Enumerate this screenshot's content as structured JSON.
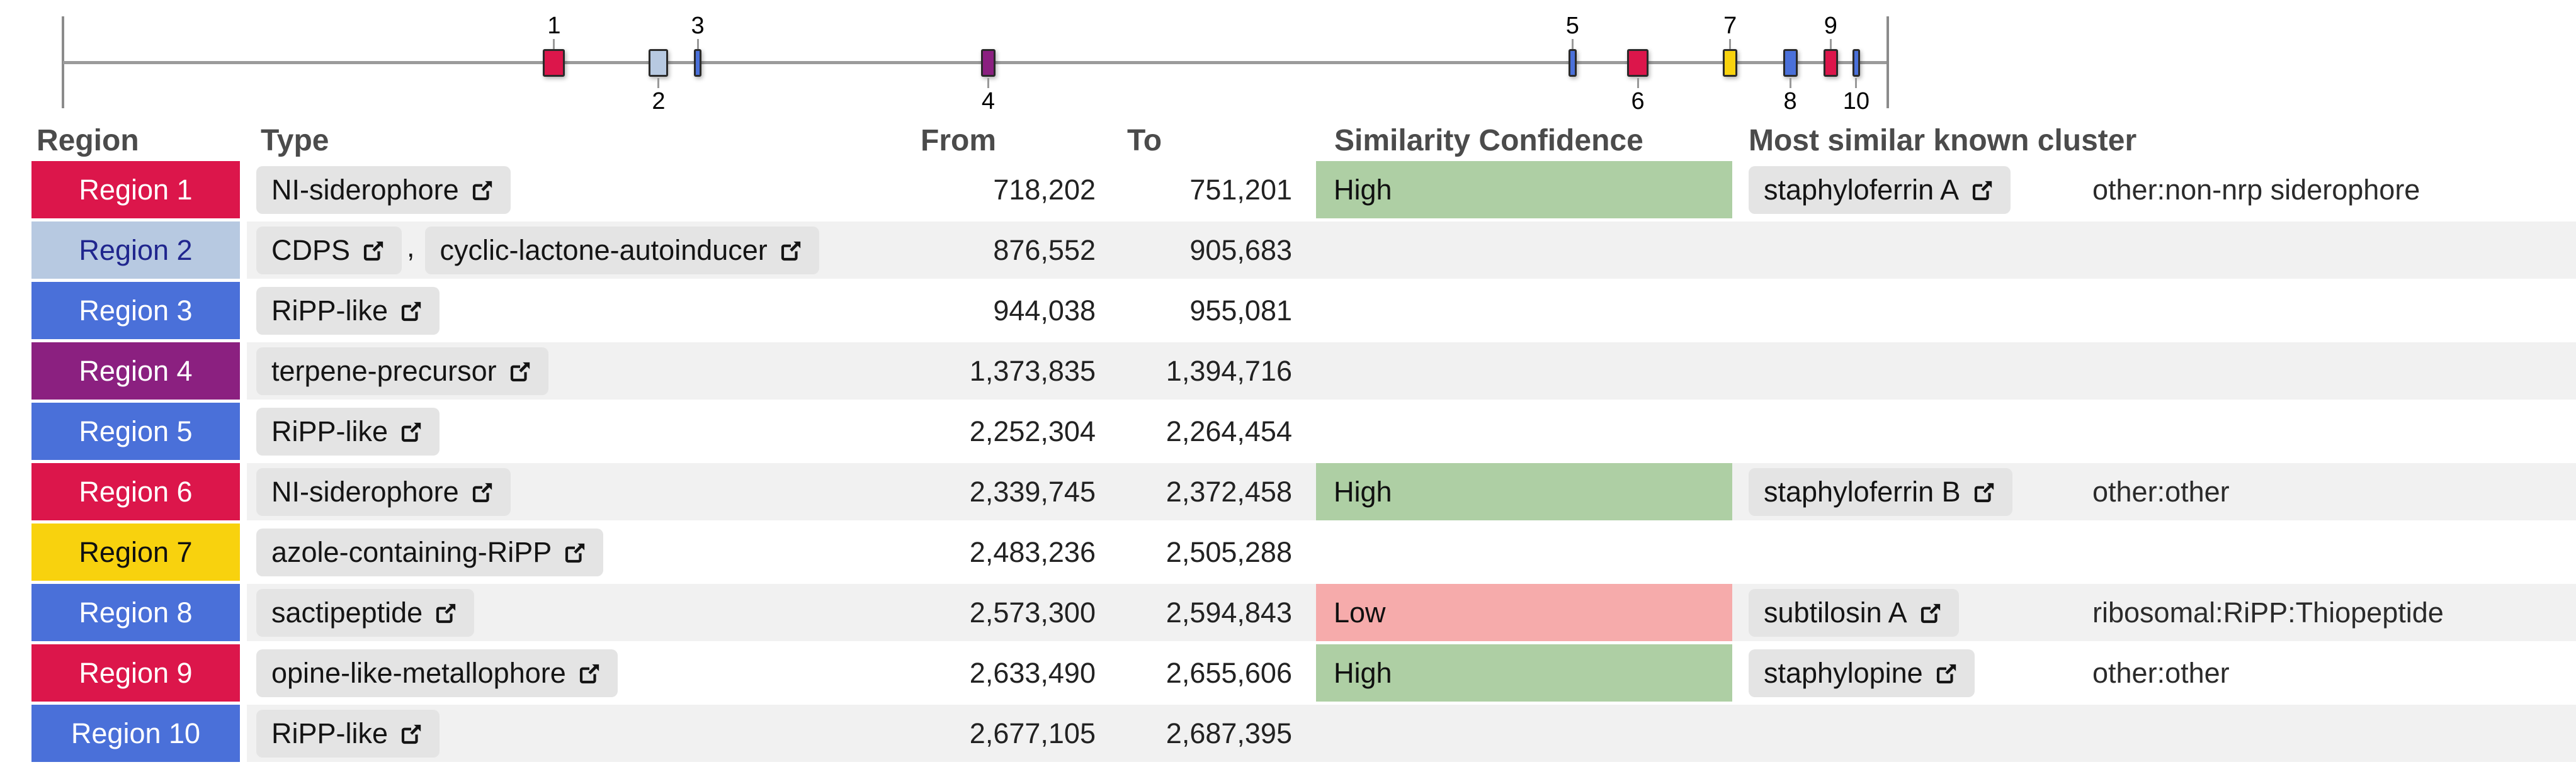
{
  "ruler": {
    "genome_length_bp": 2730000,
    "marker_numbers_above": [
      1,
      3,
      5,
      7,
      9
    ],
    "marker_numbers_below": [
      2,
      4,
      6,
      8,
      10
    ]
  },
  "table": {
    "headers": {
      "region": "Region",
      "type": "Type",
      "from": "From",
      "to": "To",
      "similarity": "Similarity Confidence",
      "cluster": "Most similar known cluster"
    },
    "regions": [
      {
        "number": "1",
        "label": "Region 1",
        "badge_color": "#dc164b",
        "badge_text_color": "#ffffff",
        "types": [
          "NI-siderophore"
        ],
        "from": "718,202",
        "to": "751,201",
        "from_bp": 718202,
        "to_bp": 751201,
        "similarity": "High",
        "similarity_color": "#aecfa4",
        "cluster": "staphyloferrin A",
        "cluster_type": "other:non-nrp siderophore"
      },
      {
        "number": "2",
        "label": "Region 2",
        "badge_color": "#b7c9e1",
        "badge_text_color": "#20268e",
        "types": [
          "CDPS",
          "cyclic-lactone-autoinducer"
        ],
        "from": "876,552",
        "to": "905,683",
        "from_bp": 876552,
        "to_bp": 905683,
        "similarity": "",
        "similarity_color": "",
        "cluster": "",
        "cluster_type": ""
      },
      {
        "number": "3",
        "label": "Region 3",
        "badge_color": "#4a70d9",
        "badge_text_color": "#ffffff",
        "types": [
          "RiPP-like"
        ],
        "from": "944,038",
        "to": "955,081",
        "from_bp": 944038,
        "to_bp": 955081,
        "similarity": "",
        "similarity_color": "",
        "cluster": "",
        "cluster_type": ""
      },
      {
        "number": "4",
        "label": "Region 4",
        "badge_color": "#8b2080",
        "badge_text_color": "#ffffff",
        "types": [
          "terpene-precursor"
        ],
        "from": "1,373,835",
        "to": "1,394,716",
        "from_bp": 1373835,
        "to_bp": 1394716,
        "similarity": "",
        "similarity_color": "",
        "cluster": "",
        "cluster_type": ""
      },
      {
        "number": "5",
        "label": "Region 5",
        "badge_color": "#4a70d9",
        "badge_text_color": "#ffffff",
        "types": [
          "RiPP-like"
        ],
        "from": "2,252,304",
        "to": "2,264,454",
        "from_bp": 2252304,
        "to_bp": 2264454,
        "similarity": "",
        "similarity_color": "",
        "cluster": "",
        "cluster_type": ""
      },
      {
        "number": "6",
        "label": "Region 6",
        "badge_color": "#dc164b",
        "badge_text_color": "#ffffff",
        "types": [
          "NI-siderophore"
        ],
        "from": "2,339,745",
        "to": "2,372,458",
        "from_bp": 2339745,
        "to_bp": 2372458,
        "similarity": "High",
        "similarity_color": "#aecfa4",
        "cluster": "staphyloferrin B",
        "cluster_type": "other:other"
      },
      {
        "number": "7",
        "label": "Region 7",
        "badge_color": "#f8d20e",
        "badge_text_color": "#111111",
        "types": [
          "azole-containing-RiPP"
        ],
        "from": "2,483,236",
        "to": "2,505,288",
        "from_bp": 2483236,
        "to_bp": 2505288,
        "similarity": "",
        "similarity_color": "",
        "cluster": "",
        "cluster_type": ""
      },
      {
        "number": "8",
        "label": "Region 8",
        "badge_color": "#4a70d9",
        "badge_text_color": "#ffffff",
        "types": [
          "sactipeptide"
        ],
        "from": "2,573,300",
        "to": "2,594,843",
        "from_bp": 2573300,
        "to_bp": 2594843,
        "similarity": "Low",
        "similarity_color": "#f6abab",
        "cluster": "subtilosin A",
        "cluster_type": "ribosomal:RiPP:Thiopeptide"
      },
      {
        "number": "9",
        "label": "Region 9",
        "badge_color": "#dc164b",
        "badge_text_color": "#ffffff",
        "types": [
          "opine-like-metallophore"
        ],
        "from": "2,633,490",
        "to": "2,655,606",
        "from_bp": 2633490,
        "to_bp": 2655606,
        "similarity": "High",
        "similarity_color": "#aecfa4",
        "cluster": "staphylopine",
        "cluster_type": "other:other"
      },
      {
        "number": "10",
        "label": "Region 10",
        "badge_color": "#4a70d9",
        "badge_text_color": "#ffffff",
        "types": [
          "RiPP-like"
        ],
        "from": "2,677,105",
        "to": "2,687,395",
        "from_bp": 2677105,
        "to_bp": 2687395,
        "similarity": "",
        "similarity_color": "",
        "cluster": "",
        "cluster_type": ""
      }
    ]
  }
}
